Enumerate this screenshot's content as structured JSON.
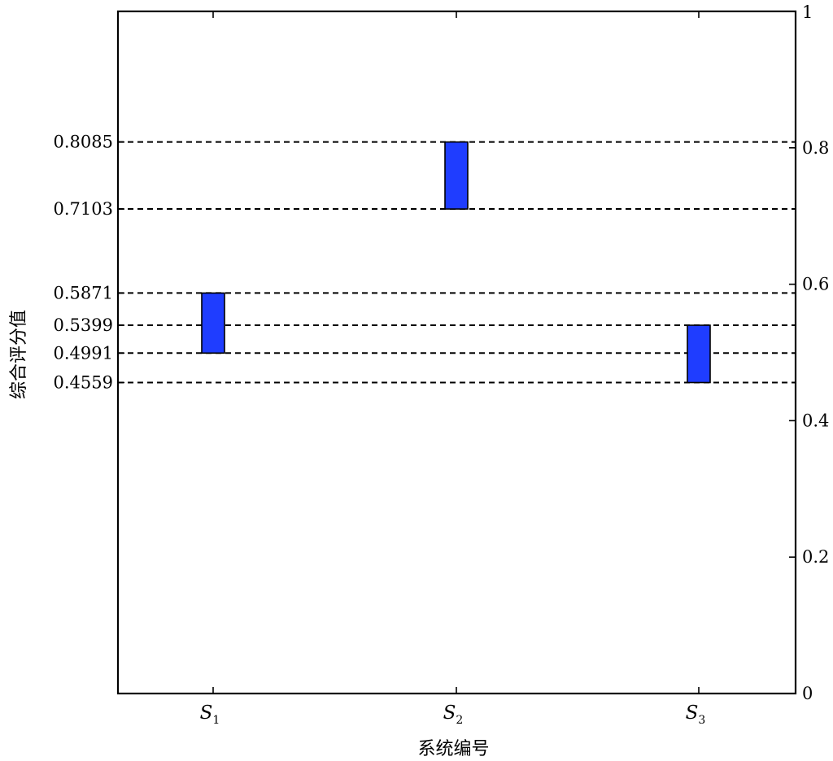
{
  "chart_data": {
    "type": "bar",
    "subtype": "floating-range",
    "categories": [
      {
        "base": "S",
        "sub": "1"
      },
      {
        "base": "S",
        "sub": "2"
      },
      {
        "base": "S",
        "sub": "3"
      }
    ],
    "ranges": [
      {
        "low": 0.4991,
        "high": 0.5871
      },
      {
        "low": 0.7103,
        "high": 0.8085
      },
      {
        "low": 0.4559,
        "high": 0.5399
      }
    ],
    "xlabel": "系统编号",
    "ylabel": "综合评分值",
    "ylim": [
      0,
      1
    ],
    "left_ticks": [
      "0.8085",
      "0.7103",
      "0.5871",
      "0.5399",
      "0.4991",
      "0.4559"
    ],
    "right_ticks": [
      "0",
      "0.2",
      "0.4",
      "0.6",
      "0.8",
      "1"
    ],
    "reference_lines": [
      0.8085,
      0.7103,
      0.5871,
      0.5399,
      0.4991,
      0.4559
    ],
    "grid": false,
    "legend": "none",
    "colors": {
      "bar_fill": "#1f3dff",
      "bar_edge": "#000000",
      "axis": "#000000",
      "reference_line": "#000000"
    }
  }
}
